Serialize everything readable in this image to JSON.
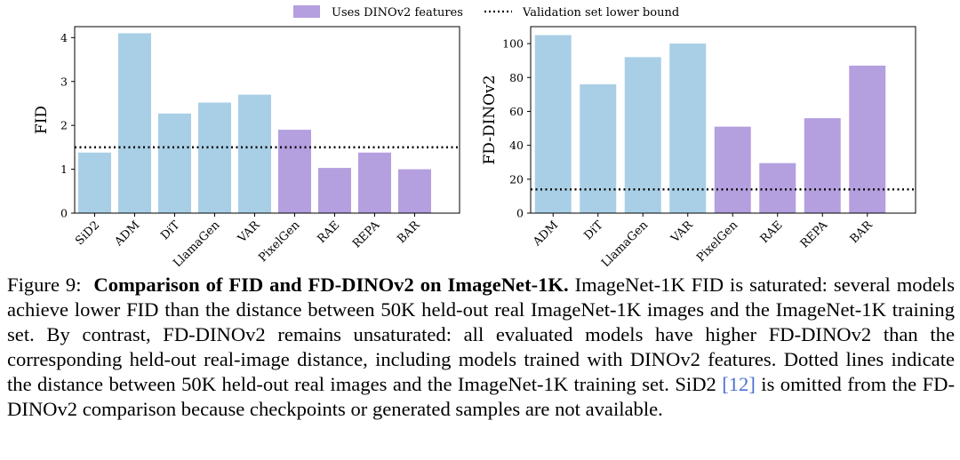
{
  "legend": {
    "dinov2_label": "Uses DINOv2 features",
    "validation_label": "Validation set lower bound"
  },
  "colors": {
    "standard": "#a9cfe6",
    "dinov2": "#b49fdf",
    "reference_line": "#000000",
    "axis": "#000000"
  },
  "chart_data": [
    {
      "type": "bar",
      "ylabel": "FID",
      "categories": [
        "SiD2",
        "ADM",
        "DiT",
        "LlamaGen",
        "VAR",
        "PixelGen",
        "RAE",
        "REPA",
        "BAR"
      ],
      "values": [
        1.38,
        4.1,
        2.27,
        2.52,
        2.7,
        1.9,
        1.03,
        1.38,
        1.0
      ],
      "uses_dinov2": [
        false,
        false,
        false,
        false,
        false,
        true,
        true,
        true,
        true
      ],
      "yticks": [
        "0",
        "1",
        "2",
        "3",
        "4"
      ],
      "ylim": [
        0,
        4.25
      ],
      "reference_line": 1.5,
      "grid": false
    },
    {
      "type": "bar",
      "ylabel": "FD-DINOv2",
      "categories": [
        "ADM",
        "DiT",
        "LlamaGen",
        "VAR",
        "PixelGen",
        "RAE",
        "REPA",
        "BAR"
      ],
      "values": [
        105,
        76,
        92,
        100,
        51,
        29.5,
        56,
        87
      ],
      "uses_dinov2": [
        false,
        false,
        false,
        false,
        true,
        true,
        true,
        true
      ],
      "yticks": [
        "0",
        "20",
        "40",
        "60",
        "80",
        "100"
      ],
      "ylim": [
        0,
        110
      ],
      "reference_line": 14,
      "grid": false
    }
  ],
  "caption": {
    "figure_label": "Figure 9:",
    "title": "Comparison of FID and FD-DINOv2 on ImageNet-1K.",
    "body_before_ref": "ImageNet-1K FID is saturated: several models achieve lower FID than the distance between 50K held-out real ImageNet-1K images and the ImageNet-1K training set. By contrast, FD-DINOv2 remains unsaturated: all evaluated models have higher FD-DINOv2 than the corresponding held-out real-image distance, including models trained with DINOv2 features. Dotted lines indicate the distance between 50K held-out real images and the ImageNet-1K training set. SiD2 ",
    "ref": "[12]",
    "body_after_ref": " is omitted from the FD-DINOv2 comparison because checkpoints or generated samples are not available."
  }
}
